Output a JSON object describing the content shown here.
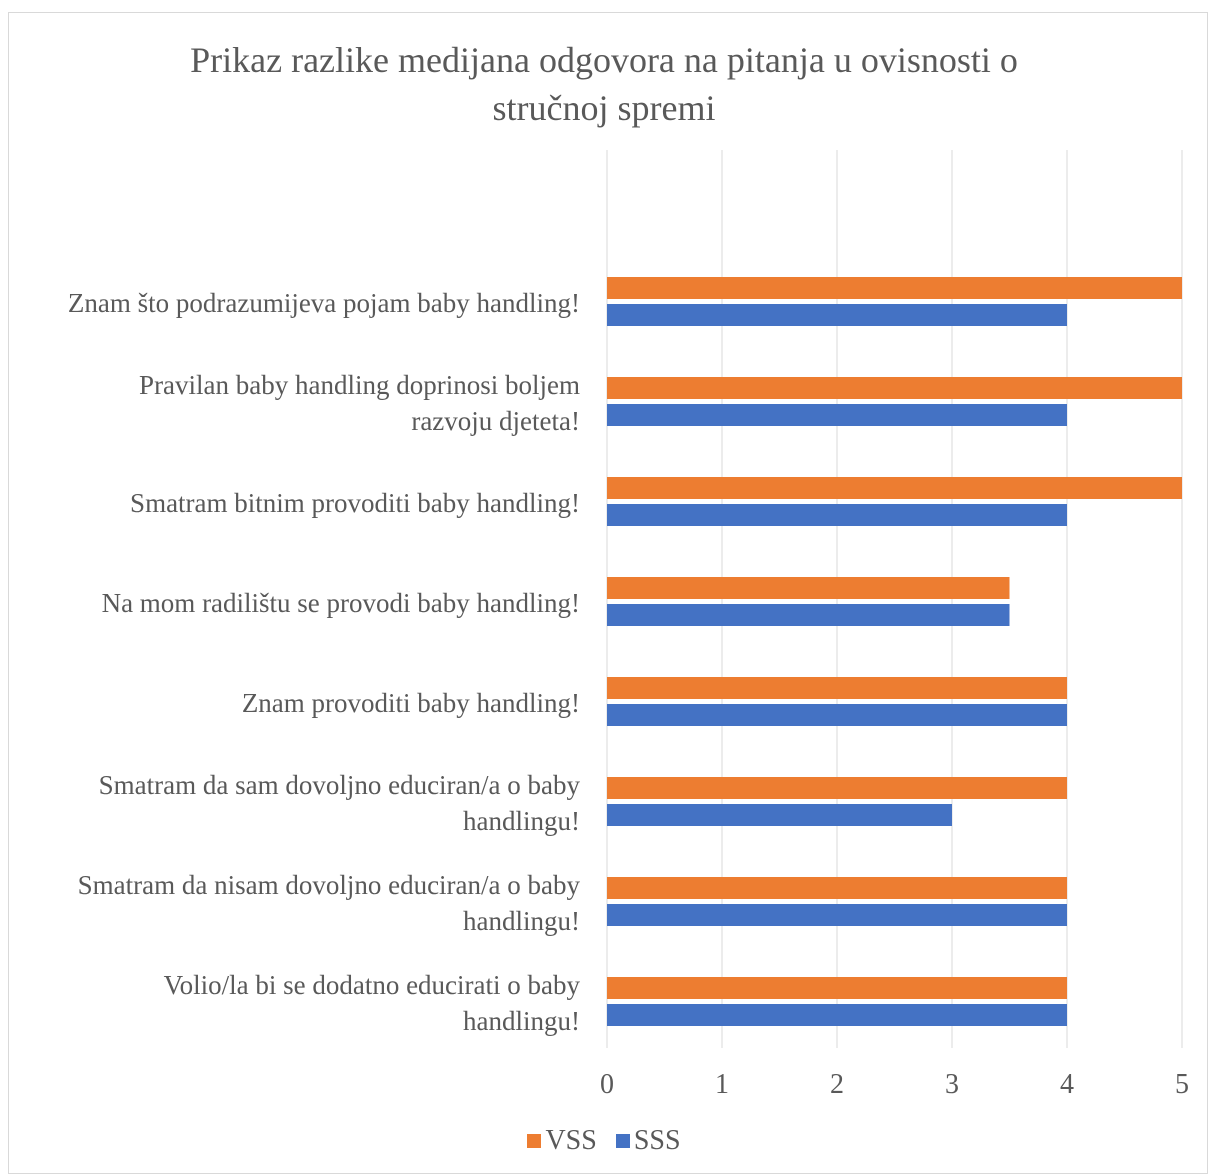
{
  "chart_data": {
    "type": "bar",
    "orientation": "horizontal",
    "title": "Prikaz razlike medijana odgovora na pitanja u ovisnosti o stručnoj spremi",
    "title_lines": [
      "Prikaz razlike medijana odgovora na pitanja u ovisnosti o",
      "stručnoj spremi"
    ],
    "categories": [
      "Znam što podrazumijeva pojam baby handling!",
      "Pravilan baby handling doprinosi boljem razvoju djeteta!",
      "Smatram bitnim provoditi baby handling!",
      "Na mom radilištu se provodi baby handling!",
      "Znam provoditi baby handling!",
      "Smatram da sam dovoljno educiran/a o baby handlingu!",
      "Smatram da nisam dovoljno educiran/a o baby handlingu!",
      "Volio/la bi se dodatno educirati o baby handlingu!"
    ],
    "category_label_lines": [
      [
        "Znam što podrazumijeva pojam baby handling!"
      ],
      [
        "Pravilan baby handling doprinosi boljem",
        "razvoju djeteta!"
      ],
      [
        "Smatram bitnim provoditi baby handling!"
      ],
      [
        "Na mom radilištu se provodi baby handling!"
      ],
      [
        "Znam provoditi baby handling!"
      ],
      [
        "Smatram da sam dovoljno educiran/a o baby",
        "handlingu!"
      ],
      [
        "Smatram da nisam dovoljno educiran/a o baby",
        "handlingu!"
      ],
      [
        "Volio/la bi se dodatno educirati o baby",
        "handlingu!"
      ]
    ],
    "series": [
      {
        "name": "VSS",
        "color": "#ed7d31",
        "values": [
          5,
          5,
          5,
          3.5,
          4,
          4,
          4,
          4
        ]
      },
      {
        "name": "SSS",
        "color": "#4472c4",
        "values": [
          4,
          4,
          4,
          3.5,
          4,
          3,
          4,
          4
        ]
      }
    ],
    "xlim": [
      0,
      5
    ],
    "x_ticks": [
      "0",
      "1",
      "2",
      "3",
      "4",
      "5"
    ],
    "grid": "vertical",
    "legend": "bottom"
  }
}
